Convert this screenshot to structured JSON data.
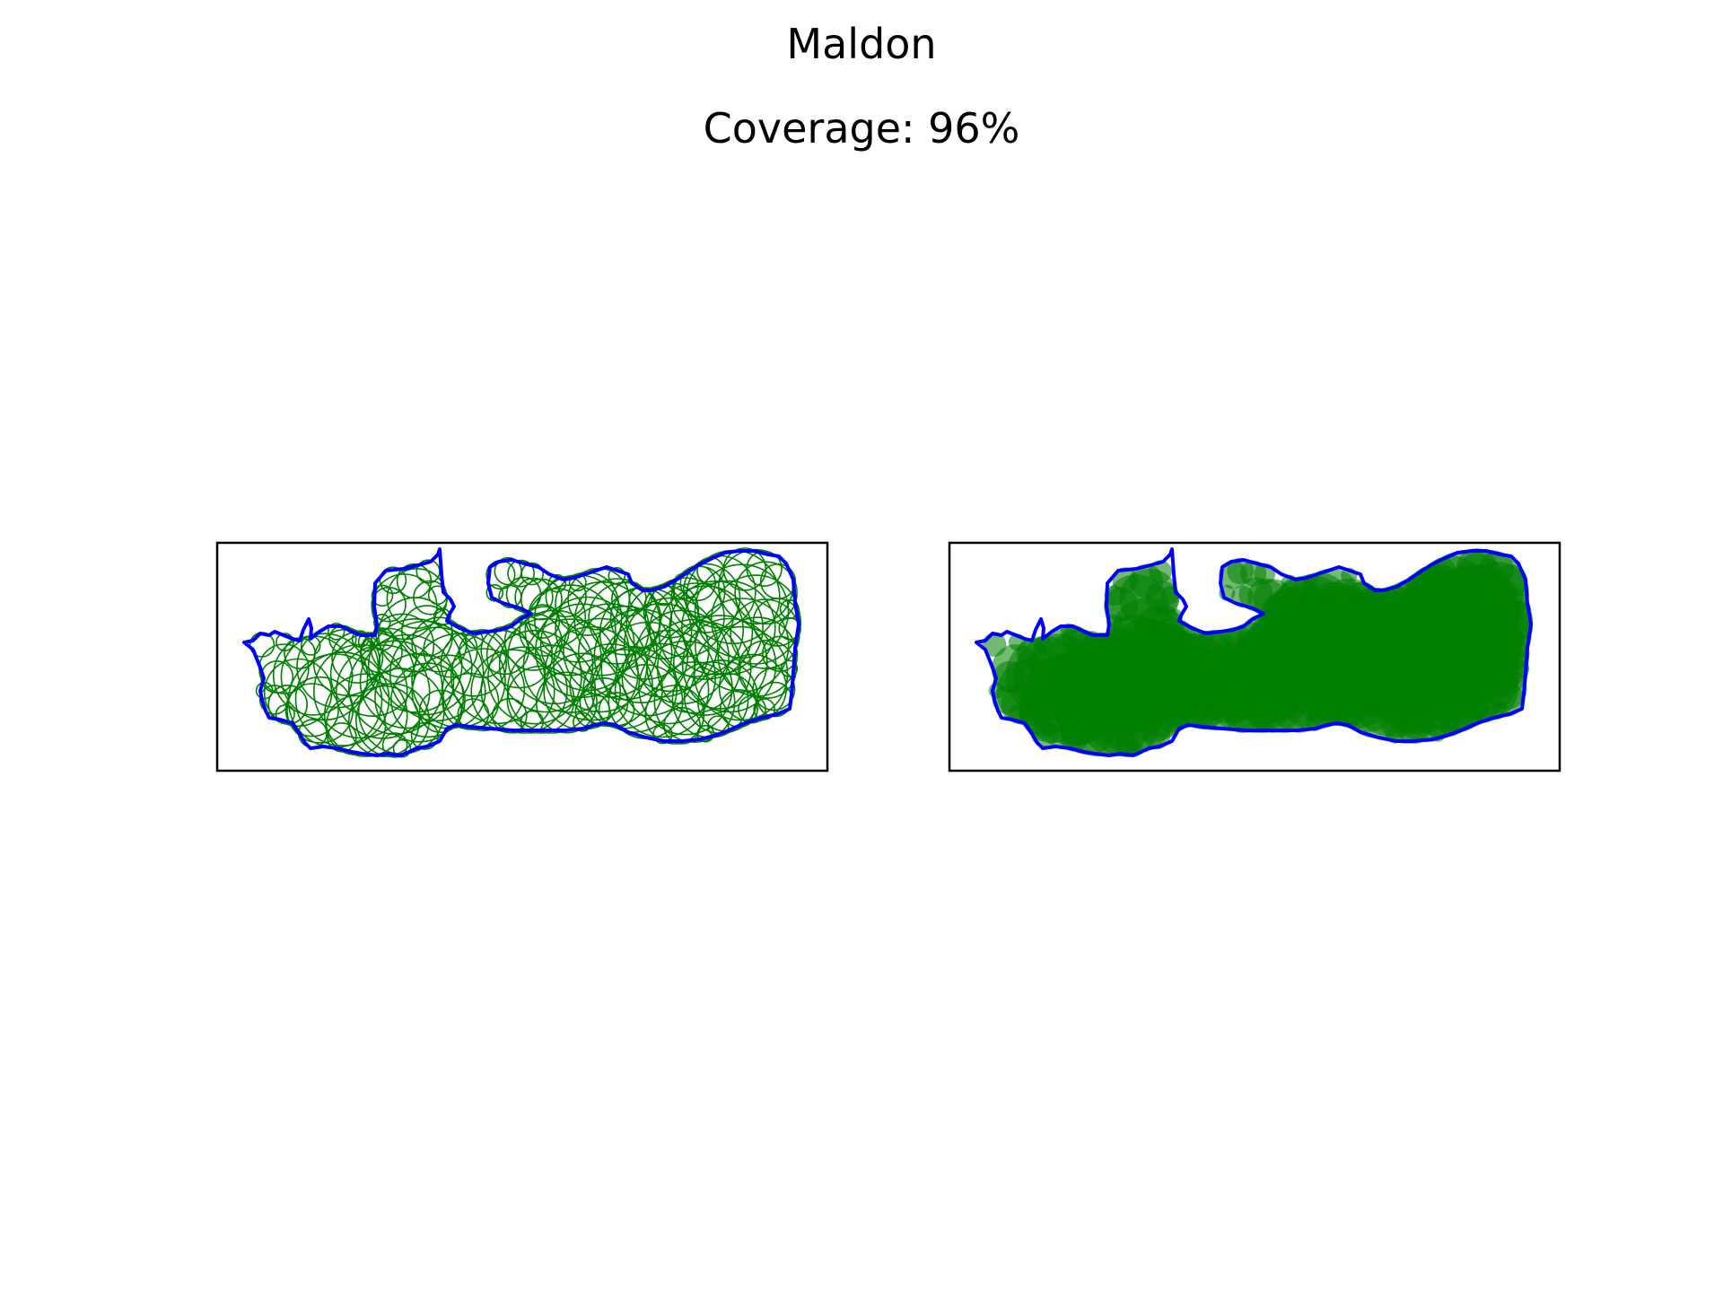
{
  "title": "Maldon",
  "subtitle": "Coverage: 96%",
  "colors": {
    "boundary": "#0000ff",
    "circle": "#008000",
    "frame": "#000000",
    "background": "#ffffff"
  },
  "panels": [
    {
      "name": "circle-outline-panel",
      "style": "outline"
    },
    {
      "name": "circle-filled-panel",
      "style": "filled"
    }
  ]
}
